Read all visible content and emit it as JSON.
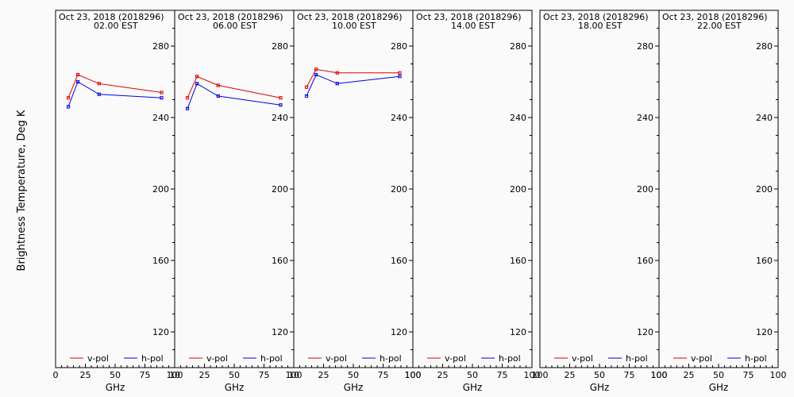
{
  "figure": {
    "ylabel": "Brightness Temperature, Deg K",
    "xlabel": "GHz",
    "colors": {
      "v-pol": "#e00000",
      "h-pol": "#0000e0",
      "axis": "#000000",
      "background": "#fafafa"
    }
  },
  "chart_data": [
    {
      "type": "line",
      "title": "Oct 23, 2018 (2018296)",
      "subtitle": "02.00 EST",
      "xlabel": "GHz",
      "ylabel": "Brightness Temperature, Deg K",
      "xlim": [
        0,
        100
      ],
      "ylim": [
        100,
        300
      ],
      "xticks": [
        "0",
        "25",
        "50",
        "75",
        "100"
      ],
      "yticks": [
        "120",
        "160",
        "200",
        "240",
        "280"
      ],
      "series": [
        {
          "name": "v-pol",
          "color": "#e00000",
          "x": [
            10.7,
            18.7,
            36.5,
            89
          ],
          "y": [
            251,
            264,
            259,
            254
          ]
        },
        {
          "name": "h-pol",
          "color": "#0000e0",
          "x": [
            10.7,
            18.7,
            36.5,
            89
          ],
          "y": [
            246,
            260,
            253,
            251
          ]
        }
      ]
    },
    {
      "type": "line",
      "title": "Oct 23, 2018 (2018296)",
      "subtitle": "06.00 EST",
      "xlabel": "GHz",
      "xlim": [
        0,
        100
      ],
      "ylim": [
        100,
        300
      ],
      "xticks": [
        "10",
        "25",
        "50",
        "75",
        "100"
      ],
      "yticks": [
        "120",
        "160",
        "200",
        "240",
        "280"
      ],
      "series": [
        {
          "name": "v-pol",
          "color": "#e00000",
          "x": [
            10.7,
            18.7,
            36.5,
            89
          ],
          "y": [
            251,
            263,
            258,
            251
          ]
        },
        {
          "name": "h-pol",
          "color": "#0000e0",
          "x": [
            10.7,
            18.7,
            36.5,
            89
          ],
          "y": [
            245,
            259,
            252,
            247
          ]
        }
      ]
    },
    {
      "type": "line",
      "title": "Oct 23, 2018 (2018296)",
      "subtitle": "10.00 EST",
      "xlabel": "GHz",
      "xlim": [
        0,
        100
      ],
      "ylim": [
        100,
        300
      ],
      "xticks": [
        "10",
        "25",
        "50",
        "75",
        "100"
      ],
      "yticks": [
        "120",
        "160",
        "200",
        "240",
        "280"
      ],
      "series": [
        {
          "name": "v-pol",
          "color": "#e00000",
          "x": [
            10.7,
            18.7,
            36.5,
            89
          ],
          "y": [
            257,
            267,
            265,
            265
          ]
        },
        {
          "name": "h-pol",
          "color": "#0000e0",
          "x": [
            10.7,
            18.7,
            36.5,
            89
          ],
          "y": [
            252,
            264,
            259,
            263
          ]
        }
      ]
    },
    {
      "type": "line",
      "title": "Oct 23, 2018 (2018296)",
      "subtitle": "14.00 EST",
      "xlabel": "GHz",
      "xlim": [
        0,
        100
      ],
      "ylim": [
        100,
        300
      ],
      "xticks": [
        "100",
        "25",
        "50",
        "75",
        "100"
      ],
      "yticks": [
        "120",
        "160",
        "200",
        "240",
        "280"
      ],
      "series": [
        {
          "name": "v-pol",
          "color": "#e00000",
          "x": [],
          "y": []
        },
        {
          "name": "h-pol",
          "color": "#0000e0",
          "x": [],
          "y": []
        }
      ]
    },
    {
      "type": "line",
      "title": "Oct 23, 2018 (2018296)",
      "subtitle": "18.00 EST",
      "xlabel": "GHz",
      "xlim": [
        0,
        100
      ],
      "ylim": [
        100,
        300
      ],
      "xticks": [
        "100",
        "25",
        "50",
        "75",
        "100"
      ],
      "yticks": [
        "120",
        "160",
        "200",
        "240",
        "280"
      ],
      "series": [
        {
          "name": "v-pol",
          "color": "#e00000",
          "x": [],
          "y": []
        },
        {
          "name": "h-pol",
          "color": "#0000e0",
          "x": [],
          "y": []
        }
      ]
    },
    {
      "type": "line",
      "title": "Oct 23, 2018 (2018296)",
      "subtitle": "22.00 EST",
      "xlabel": "GHz",
      "xlim": [
        0,
        100
      ],
      "ylim": [
        100,
        300
      ],
      "xticks": [
        "100",
        "25",
        "50",
        "75",
        "100"
      ],
      "yticks": [
        "120",
        "160",
        "200",
        "240",
        "280"
      ],
      "series": [
        {
          "name": "v-pol",
          "color": "#e00000",
          "x": [],
          "y": []
        },
        {
          "name": "h-pol",
          "color": "#0000e0",
          "x": [],
          "y": []
        }
      ]
    }
  ]
}
